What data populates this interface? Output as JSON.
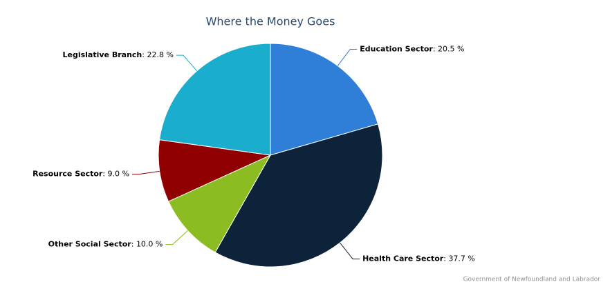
{
  "chart_data": {
    "type": "pie",
    "title": "Where the Money Goes",
    "categories": [
      "Education Sector",
      "Health Care Sector",
      "Other Social Sector",
      "Resource Sector",
      "Legislative Branch"
    ],
    "values": [
      20.5,
      37.7,
      10.0,
      9.0,
      22.8
    ],
    "value_labels": [
      "20.5 %",
      "37.7 %",
      "10.0 %",
      "9.0 %",
      "22.8 %"
    ],
    "label_separator": ": ",
    "colors": [
      "#2f7ed8",
      "#0d233a",
      "#8bbc21",
      "#910000",
      "#1aadce"
    ],
    "credits": "Government of Newfoundland and Labrador"
  }
}
